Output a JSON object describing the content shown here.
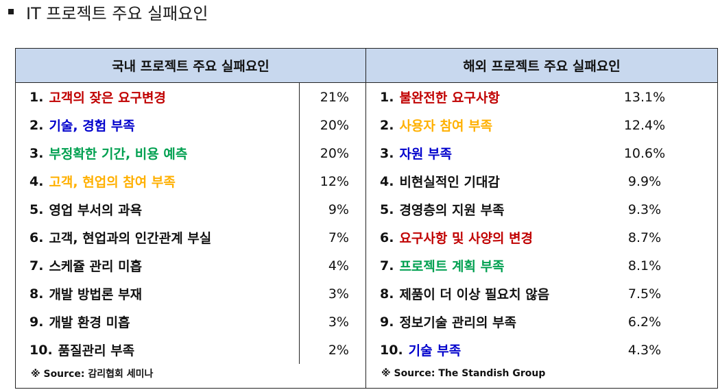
{
  "title": "IT 프로젝트 주요 실패요인",
  "domestic": {
    "header": "국내 프로젝트 주요 실패요인",
    "items": [
      {
        "num": "1.",
        "text": "고객의 잦은 요구변경",
        "pct": "21%",
        "color": "#c00000"
      },
      {
        "num": "2.",
        "text": "기술, 경험 부족",
        "pct": "20%",
        "color": "#0000cc"
      },
      {
        "num": "3.",
        "text": "부정확한 기간, 비용 예측",
        "pct": "20%",
        "color": "#00a050"
      },
      {
        "num": "4.",
        "text": "고객, 현업의 참여 부족",
        "pct": "12%",
        "color": "#ffb000"
      },
      {
        "num": "5.",
        "text": "영업 부서의 과욕",
        "pct": "9%",
        "color": "#111111"
      },
      {
        "num": "6.",
        "text": "고객, 현업과의 인간관계 부실",
        "pct": "7%",
        "color": "#111111"
      },
      {
        "num": "7.",
        "text": "스케쥴 관리 미흡",
        "pct": "4%",
        "color": "#111111"
      },
      {
        "num": "8.",
        "text": "개발 방법론 부재",
        "pct": "3%",
        "color": "#111111"
      },
      {
        "num": "9.",
        "text": "개발 환경 미흡",
        "pct": "3%",
        "color": "#111111"
      },
      {
        "num": "10.",
        "text": "품질관리 부족",
        "pct": "2%",
        "color": "#111111"
      }
    ],
    "source": "※ Source: 감리협회 세미나"
  },
  "overseas": {
    "header": "해외 프로젝트 주요 실패요인",
    "items": [
      {
        "num": "1.",
        "text": "불완전한 요구사항",
        "pct": "13.1%",
        "color": "#c00000"
      },
      {
        "num": "2.",
        "text": "사용자 참여 부족",
        "pct": "12.4%",
        "color": "#ffb000"
      },
      {
        "num": "3.",
        "text": "자원 부족",
        "pct": "10.6%",
        "color": "#0000cc"
      },
      {
        "num": "4.",
        "text": "비현실적인 기대감",
        "pct": "9.9%",
        "color": "#111111"
      },
      {
        "num": "5.",
        "text": "경영층의 지원 부족",
        "pct": "9.3%",
        "color": "#111111"
      },
      {
        "num": "6.",
        "text": "요구사항 및 사양의 변경",
        "pct": "8.7%",
        "color": "#c00000"
      },
      {
        "num": "7.",
        "text": "프로젝트 계획 부족",
        "pct": "8.1%",
        "color": "#00a050"
      },
      {
        "num": "8.",
        "text": "제품이 더 이상 필요치 않음",
        "pct": "7.5%",
        "color": "#111111"
      },
      {
        "num": "9.",
        "text": "정보기술 관리의 부족",
        "pct": "6.2%",
        "color": "#111111"
      },
      {
        "num": "10.",
        "text": "기술 부족",
        "pct": "4.3%",
        "color": "#0000cc"
      }
    ],
    "source": "※ Source: The Standish Group"
  }
}
